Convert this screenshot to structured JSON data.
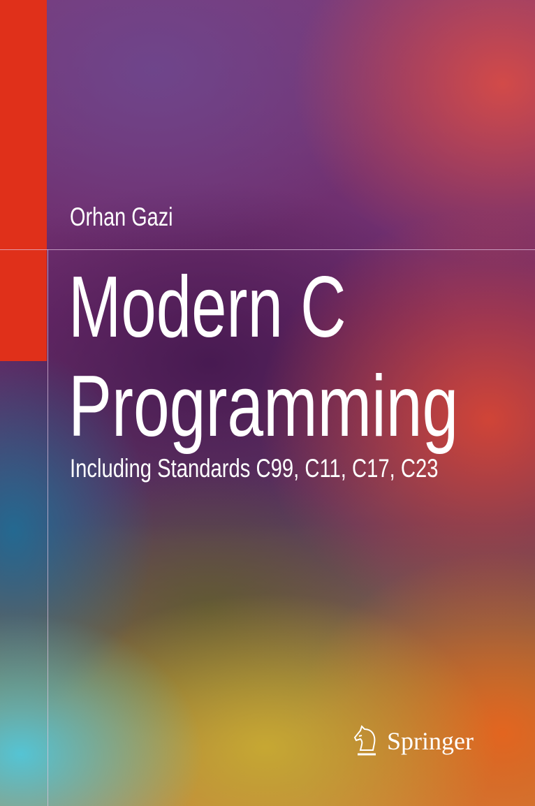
{
  "cover": {
    "author": "Orhan Gazi",
    "title_line1": "Modern C",
    "title_line2": "Programming",
    "subtitle": "Including Standards C99, C11, C17, C23",
    "publisher": "Springer",
    "publisher_logo_icon": "knight-chess-horse-icon",
    "colors": {
      "accent_bar": "#e0301a",
      "text": "#ffffff"
    }
  }
}
